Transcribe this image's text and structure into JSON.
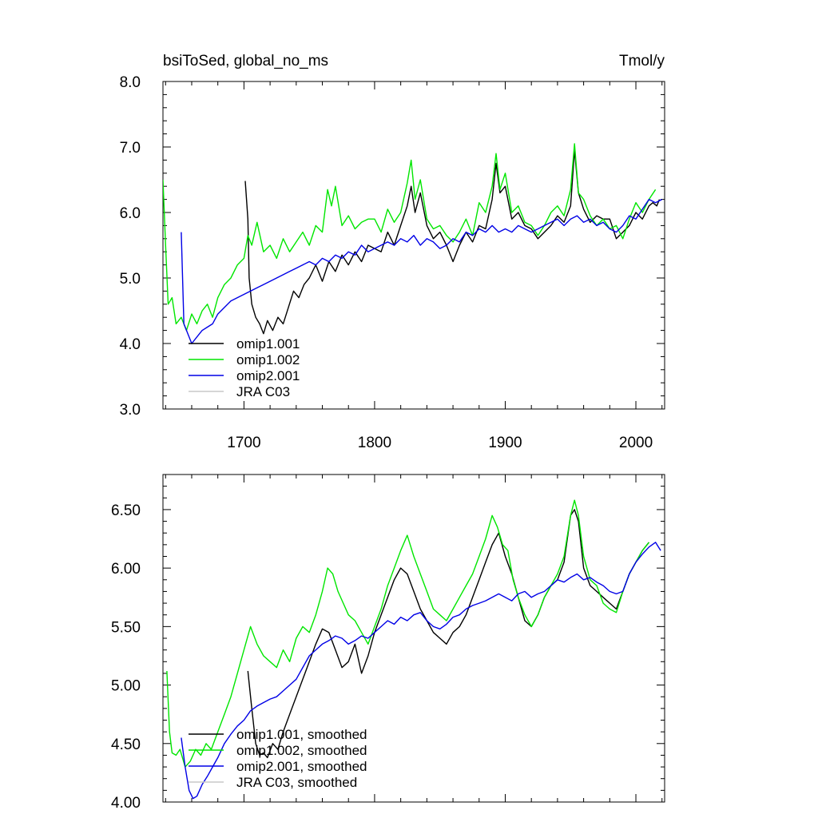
{
  "chart_data": [
    {
      "type": "line",
      "title_left": "bsiToSed, global_no_ms",
      "title_right": "Tmol/y",
      "xlim": [
        1638,
        2022
      ],
      "ylim": [
        3.0,
        8.0
      ],
      "x_ticks": [
        1700,
        1800,
        1900,
        2000
      ],
      "x_tick_labels": [
        "1700",
        "1800",
        "1900",
        "2000"
      ],
      "y_ticks": [
        3.0,
        4.0,
        5.0,
        6.0,
        7.0,
        8.0
      ],
      "y_tick_labels": [
        "3.0",
        "4.0",
        "5.0",
        "6.0",
        "7.0",
        "8.0"
      ],
      "legend": [
        "omip1.001",
        "omip1.002",
        "omip2.001",
        "JRA C03"
      ],
      "series": [
        {
          "name": "omip1.001",
          "color": "#000000",
          "x": [
            1701,
            1703,
            1704,
            1706,
            1709,
            1712,
            1715,
            1718,
            1722,
            1726,
            1730,
            1734,
            1738,
            1742,
            1746,
            1750,
            1755,
            1760,
            1765,
            1770,
            1775,
            1780,
            1785,
            1790,
            1795,
            1800,
            1805,
            1810,
            1815,
            1820,
            1825,
            1828,
            1831,
            1835,
            1840,
            1845,
            1850,
            1855,
            1860,
            1865,
            1870,
            1875,
            1880,
            1885,
            1890,
            1893,
            1896,
            1900,
            1905,
            1910,
            1915,
            1920,
            1925,
            1930,
            1935,
            1940,
            1945,
            1950,
            1953,
            1956,
            1960,
            1965,
            1970,
            1975,
            1980,
            1985,
            1990,
            1995,
            2000,
            2005,
            2010,
            2013,
            2016,
            2018
          ],
          "y": [
            6.48,
            5.9,
            5.0,
            4.6,
            4.4,
            4.3,
            4.15,
            4.35,
            4.2,
            4.4,
            4.3,
            4.55,
            4.8,
            4.7,
            4.9,
            5.0,
            5.2,
            4.95,
            5.25,
            5.1,
            5.35,
            5.2,
            5.4,
            5.25,
            5.5,
            5.45,
            5.4,
            5.7,
            5.5,
            5.8,
            6.1,
            6.4,
            6.0,
            6.3,
            5.8,
            5.6,
            5.7,
            5.5,
            5.25,
            5.5,
            5.7,
            5.55,
            5.8,
            5.75,
            6.2,
            6.75,
            6.3,
            6.4,
            5.9,
            6.0,
            5.8,
            5.75,
            5.6,
            5.7,
            5.8,
            5.95,
            5.85,
            6.1,
            6.95,
            6.3,
            6.05,
            5.85,
            5.95,
            5.9,
            5.9,
            5.6,
            5.7,
            5.8,
            6.0,
            5.9,
            6.1,
            6.15,
            6.1,
            6.2
          ]
        },
        {
          "name": "omip1.002",
          "color": "#00e600",
          "x": [
            1638,
            1640,
            1642,
            1645,
            1648,
            1652,
            1656,
            1660,
            1664,
            1668,
            1672,
            1676,
            1680,
            1685,
            1690,
            1695,
            1700,
            1703,
            1706,
            1710,
            1715,
            1720,
            1725,
            1730,
            1735,
            1740,
            1745,
            1750,
            1755,
            1760,
            1764,
            1767,
            1770,
            1775,
            1780,
            1785,
            1790,
            1795,
            1800,
            1805,
            1810,
            1815,
            1820,
            1825,
            1828,
            1831,
            1835,
            1840,
            1845,
            1850,
            1855,
            1860,
            1865,
            1870,
            1875,
            1880,
            1885,
            1890,
            1893,
            1896,
            1900,
            1905,
            1910,
            1915,
            1920,
            1925,
            1930,
            1935,
            1940,
            1945,
            1950,
            1953,
            1956,
            1960,
            1965,
            1970,
            1975,
            1980,
            1985,
            1990,
            1995,
            2000,
            2005,
            2010,
            2015
          ],
          "y": [
            6.5,
            5.5,
            4.6,
            4.7,
            4.3,
            4.4,
            4.2,
            4.45,
            4.3,
            4.5,
            4.6,
            4.4,
            4.7,
            4.9,
            5.0,
            5.2,
            5.3,
            5.65,
            5.5,
            5.85,
            5.4,
            5.5,
            5.3,
            5.6,
            5.4,
            5.55,
            5.7,
            5.5,
            5.8,
            5.7,
            6.35,
            6.1,
            6.4,
            5.8,
            5.95,
            5.75,
            5.85,
            5.9,
            5.9,
            5.7,
            6.05,
            5.85,
            6.0,
            6.45,
            6.8,
            6.2,
            6.5,
            5.9,
            5.75,
            5.8,
            5.65,
            5.55,
            5.7,
            5.9,
            5.65,
            6.15,
            6.0,
            6.4,
            6.9,
            6.35,
            6.6,
            6.0,
            6.1,
            5.85,
            5.8,
            5.65,
            5.8,
            6.0,
            6.1,
            5.95,
            6.35,
            7.05,
            6.3,
            6.2,
            5.95,
            5.8,
            5.9,
            5.75,
            5.8,
            5.6,
            5.9,
            6.15,
            6.0,
            6.2,
            6.35
          ]
        },
        {
          "name": "omip2.001",
          "color": "#0000e6",
          "x": [
            1652,
            1654,
            1657,
            1660,
            1664,
            1668,
            1672,
            1676,
            1680,
            1685,
            1690,
            1695,
            1700,
            1705,
            1710,
            1715,
            1720,
            1725,
            1730,
            1735,
            1740,
            1745,
            1750,
            1755,
            1760,
            1765,
            1770,
            1775,
            1780,
            1785,
            1790,
            1795,
            1800,
            1805,
            1810,
            1815,
            1820,
            1825,
            1830,
            1835,
            1840,
            1845,
            1850,
            1855,
            1860,
            1865,
            1870,
            1875,
            1880,
            1885,
            1890,
            1895,
            1900,
            1905,
            1910,
            1915,
            1920,
            1925,
            1930,
            1935,
            1940,
            1945,
            1950,
            1955,
            1960,
            1965,
            1970,
            1975,
            1980,
            1985,
            1990,
            1995,
            2000,
            2005,
            2010,
            2015,
            2020
          ],
          "y": [
            5.7,
            4.3,
            4.15,
            4.0,
            4.1,
            4.2,
            4.25,
            4.3,
            4.45,
            4.55,
            4.65,
            4.7,
            4.75,
            4.8,
            4.85,
            4.9,
            4.95,
            5.0,
            5.05,
            5.1,
            5.15,
            5.2,
            5.25,
            5.2,
            5.3,
            5.25,
            5.35,
            5.3,
            5.4,
            5.35,
            5.5,
            5.4,
            5.45,
            5.5,
            5.55,
            5.5,
            5.6,
            5.55,
            5.65,
            5.5,
            5.6,
            5.55,
            5.45,
            5.5,
            5.6,
            5.55,
            5.7,
            5.65,
            5.75,
            5.7,
            5.8,
            5.7,
            5.75,
            5.7,
            5.8,
            5.75,
            5.7,
            5.75,
            5.8,
            5.85,
            5.9,
            5.8,
            5.9,
            5.95,
            5.85,
            5.9,
            5.8,
            5.85,
            5.75,
            5.7,
            5.8,
            5.95,
            5.9,
            6.05,
            6.2,
            6.15,
            6.2
          ]
        },
        {
          "name": "JRA C03",
          "color": "#c8c8c8",
          "x": [],
          "y": []
        }
      ]
    },
    {
      "type": "line",
      "xlim": [
        1638,
        2022
      ],
      "ylim": [
        4.0,
        6.8
      ],
      "x_ticks": [
        1700,
        1800,
        1900,
        2000
      ],
      "y_ticks": [
        4.0,
        4.5,
        5.0,
        5.5,
        6.0,
        6.5
      ],
      "y_tick_labels": [
        "4.00",
        "4.50",
        "5.00",
        "5.50",
        "6.00",
        "6.50"
      ],
      "legend": [
        "omip1.001, smoothed",
        "omip1.002, smoothed",
        "omip2.001, smoothed",
        "JRA C03, smoothed"
      ],
      "series": [
        {
          "name": "omip1.001, smoothed",
          "color": "#000000",
          "x": [
            1703,
            1706,
            1709,
            1712,
            1715,
            1718,
            1722,
            1726,
            1730,
            1735,
            1740,
            1745,
            1750,
            1755,
            1760,
            1765,
            1770,
            1775,
            1780,
            1785,
            1790,
            1795,
            1800,
            1805,
            1810,
            1815,
            1820,
            1825,
            1830,
            1835,
            1840,
            1845,
            1850,
            1855,
            1860,
            1865,
            1870,
            1875,
            1880,
            1885,
            1890,
            1895,
            1900,
            1905,
            1910,
            1915,
            1920,
            1925,
            1930,
            1935,
            1940,
            1945,
            1950,
            1953,
            1956,
            1960,
            1965,
            1970,
            1975,
            1980,
            1985,
            1990,
            1995,
            2000,
            2005,
            2010
          ],
          "y": [
            5.12,
            4.8,
            4.5,
            4.4,
            4.42,
            4.38,
            4.5,
            4.45,
            4.6,
            4.75,
            4.9,
            5.05,
            5.2,
            5.35,
            5.48,
            5.45,
            5.3,
            5.15,
            5.2,
            5.35,
            5.1,
            5.25,
            5.45,
            5.6,
            5.75,
            5.9,
            6.0,
            5.95,
            5.8,
            5.65,
            5.55,
            5.45,
            5.4,
            5.35,
            5.45,
            5.5,
            5.6,
            5.75,
            5.9,
            6.05,
            6.2,
            6.3,
            6.1,
            5.95,
            5.75,
            5.55,
            5.5,
            5.6,
            5.75,
            5.85,
            5.9,
            6.05,
            6.45,
            6.5,
            6.4,
            6.0,
            5.85,
            5.8,
            5.75,
            5.7,
            5.65,
            5.8,
            5.95,
            6.05,
            6.15,
            6.22
          ]
        },
        {
          "name": "omip1.002, smoothed",
          "color": "#00e600",
          "x": [
            1641,
            1643,
            1645,
            1648,
            1651,
            1655,
            1659,
            1663,
            1667,
            1671,
            1675,
            1680,
            1685,
            1690,
            1695,
            1700,
            1705,
            1710,
            1715,
            1720,
            1725,
            1730,
            1735,
            1740,
            1745,
            1750,
            1755,
            1760,
            1764,
            1768,
            1772,
            1776,
            1780,
            1785,
            1790,
            1795,
            1800,
            1805,
            1810,
            1815,
            1820,
            1825,
            1830,
            1835,
            1840,
            1845,
            1850,
            1855,
            1860,
            1865,
            1870,
            1875,
            1880,
            1885,
            1890,
            1894,
            1898,
            1902,
            1906,
            1910,
            1915,
            1920,
            1925,
            1930,
            1935,
            1940,
            1945,
            1950,
            1953,
            1956,
            1960,
            1965,
            1970,
            1975,
            1980,
            1985,
            1990,
            1995,
            2000,
            2005,
            2010
          ],
          "y": [
            5.12,
            4.6,
            4.42,
            4.4,
            4.45,
            4.3,
            4.35,
            4.45,
            4.4,
            4.5,
            4.45,
            4.6,
            4.75,
            4.9,
            5.1,
            5.3,
            5.5,
            5.35,
            5.25,
            5.2,
            5.15,
            5.3,
            5.2,
            5.4,
            5.5,
            5.45,
            5.6,
            5.8,
            6.0,
            5.95,
            5.8,
            5.7,
            5.6,
            5.55,
            5.45,
            5.35,
            5.5,
            5.65,
            5.85,
            6.0,
            6.15,
            6.28,
            6.1,
            5.95,
            5.8,
            5.65,
            5.6,
            5.55,
            5.65,
            5.75,
            5.85,
            5.95,
            6.1,
            6.25,
            6.45,
            6.35,
            6.2,
            6.15,
            5.9,
            5.75,
            5.6,
            5.5,
            5.6,
            5.75,
            5.85,
            5.95,
            6.1,
            6.45,
            6.58,
            6.45,
            6.1,
            5.9,
            5.85,
            5.7,
            5.65,
            5.62,
            5.8,
            5.95,
            6.05,
            6.15,
            6.22
          ]
        },
        {
          "name": "omip2.001, smoothed",
          "color": "#0000e6",
          "x": [
            1652,
            1655,
            1658,
            1661,
            1664,
            1668,
            1672,
            1676,
            1680,
            1685,
            1690,
            1695,
            1700,
            1705,
            1710,
            1715,
            1720,
            1725,
            1730,
            1735,
            1740,
            1745,
            1750,
            1755,
            1760,
            1765,
            1770,
            1775,
            1780,
            1785,
            1790,
            1795,
            1800,
            1805,
            1810,
            1815,
            1820,
            1825,
            1830,
            1835,
            1840,
            1845,
            1850,
            1855,
            1860,
            1865,
            1870,
            1875,
            1880,
            1885,
            1890,
            1895,
            1900,
            1905,
            1910,
            1915,
            1920,
            1925,
            1930,
            1935,
            1940,
            1945,
            1950,
            1955,
            1960,
            1965,
            1970,
            1975,
            1980,
            1985,
            1990,
            1995,
            2000,
            2005,
            2010,
            2015,
            2019
          ],
          "y": [
            4.55,
            4.3,
            4.1,
            4.03,
            4.05,
            4.15,
            4.22,
            4.3,
            4.38,
            4.5,
            4.58,
            4.65,
            4.7,
            4.78,
            4.82,
            4.85,
            4.88,
            4.9,
            4.95,
            5.0,
            5.05,
            5.15,
            5.25,
            5.3,
            5.35,
            5.38,
            5.42,
            5.4,
            5.35,
            5.38,
            5.42,
            5.4,
            5.45,
            5.5,
            5.55,
            5.52,
            5.58,
            5.55,
            5.6,
            5.62,
            5.55,
            5.5,
            5.48,
            5.52,
            5.58,
            5.6,
            5.65,
            5.68,
            5.7,
            5.72,
            5.75,
            5.78,
            5.75,
            5.72,
            5.78,
            5.8,
            5.75,
            5.78,
            5.8,
            5.85,
            5.9,
            5.88,
            5.92,
            5.95,
            5.9,
            5.92,
            5.88,
            5.85,
            5.8,
            5.78,
            5.8,
            5.95,
            6.05,
            6.12,
            6.18,
            6.22,
            6.15
          ]
        },
        {
          "name": "JRA C03, smoothed",
          "color": "#c8c8c8",
          "x": [],
          "y": []
        }
      ]
    }
  ]
}
